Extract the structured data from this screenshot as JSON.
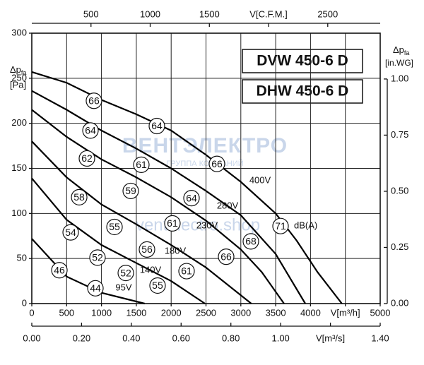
{
  "chart_data": {
    "type": "line",
    "watermark": {
      "brand": "ВЕНТЭЛЕКТРО",
      "tagline": "ГРУППА КОМПАНИЙ",
      "url": "ventelectro.shop"
    },
    "model_labels": [
      "DVW 450-6 D",
      "DHW 450-6 D"
    ],
    "y_label": {
      "main": "Δp",
      "sub": "fa",
      "unit": "[Pa]"
    },
    "y2_label": {
      "main": "Δp",
      "sub": "fa",
      "unit": "[in.WG]"
    },
    "xlim": [
      0,
      5000
    ],
    "xticks": [
      0,
      500,
      1000,
      1500,
      2000,
      2500,
      3000,
      3500,
      4000,
      {
        "value": 4500,
        "label": "V[m³/h]"
      },
      5000
    ],
    "x2lim": [
      0,
      2943
    ],
    "x2ticks": [
      500,
      1000,
      1500,
      {
        "value": 2000,
        "label": "V[C.F.M.]"
      },
      2500
    ],
    "x3lim": [
      0,
      1.4
    ],
    "x3ticks": [
      {
        "value": 0,
        "label": "0.00"
      },
      {
        "value": 0.2,
        "label": "0.20"
      },
      {
        "value": 0.4,
        "label": "0.40"
      },
      {
        "value": 0.6,
        "label": "0.60"
      },
      {
        "value": 0.8,
        "label": "0.80"
      },
      {
        "value": 1,
        "label": "1.00"
      },
      {
        "value": 1.2,
        "label": "V[m³/s]"
      },
      {
        "value": 1.4,
        "label": "1.40"
      }
    ],
    "ylim": [
      0,
      300
    ],
    "yticks": [
      0,
      50,
      100,
      150,
      200,
      250,
      300
    ],
    "y2lim": [
      0,
      1.204
    ],
    "y2ticks": [
      {
        "value": 0,
        "label": "0.00"
      },
      {
        "value": 0.25,
        "label": "0.25"
      },
      {
        "value": 0.5,
        "label": "0.50"
      },
      {
        "value": 0.75,
        "label": "0.75"
      },
      {
        "value": 1,
        "label": "1.00"
      }
    ],
    "grid": true,
    "color": "#000000",
    "series": [
      {
        "name": "400V",
        "x": [
          0,
          500,
          1000,
          1500,
          2000,
          2500,
          3000,
          3500,
          3800,
          4100,
          4450
        ],
        "values": [
          257,
          245,
          226,
          210,
          192,
          165,
          135,
          100,
          70,
          35,
          0
        ]
      },
      {
        "name": "280V",
        "x": [
          0,
          500,
          1000,
          1500,
          2000,
          2500,
          3000,
          3500,
          3925
        ],
        "values": [
          236,
          215,
          192,
          172,
          150,
          125,
          98,
          55,
          0
        ]
      },
      {
        "name": "230V",
        "x": [
          0,
          500,
          1000,
          1500,
          2000,
          2500,
          3000,
          3300,
          3620
        ],
        "values": [
          215,
          185,
          160,
          140,
          118,
          92,
          60,
          35,
          0
        ]
      },
      {
        "name": "180V",
        "x": [
          0,
          500,
          1000,
          1500,
          2000,
          2500,
          3150
        ],
        "values": [
          180,
          140,
          110,
          88,
          65,
          40,
          0
        ]
      },
      {
        "name": "140V",
        "x": [
          0,
          500,
          1000,
          1500,
          2000,
          2485
        ],
        "values": [
          139,
          93,
          65,
          45,
          25,
          0
        ]
      },
      {
        "name": "95V",
        "x": [
          0,
          500,
          1000,
          1620
        ],
        "values": [
          72,
          30,
          12,
          0
        ]
      }
    ],
    "sound_levels": {
      "unit_label": "dB(A)",
      "x": [
        892,
        1795,
        2657,
        842,
        1572,
        2292,
        791,
        1420,
        2018,
        3144,
        3570,
        680,
        1187,
        1653,
        2789,
        558,
        943,
        1349,
        2221,
        396,
        913,
        1805
      ],
      "y": [
        225,
        197,
        155,
        192,
        154,
        117,
        161,
        125,
        89,
        69,
        86,
        118,
        85,
        60,
        52,
        79,
        51,
        34,
        36,
        37,
        17,
        20
      ],
      "values": [
        66,
        64,
        66,
        64,
        61,
        64,
        62,
        59,
        61,
        68,
        71,
        58,
        55,
        56,
        66,
        54,
        52,
        52,
        61,
        46,
        44,
        55
      ]
    }
  }
}
